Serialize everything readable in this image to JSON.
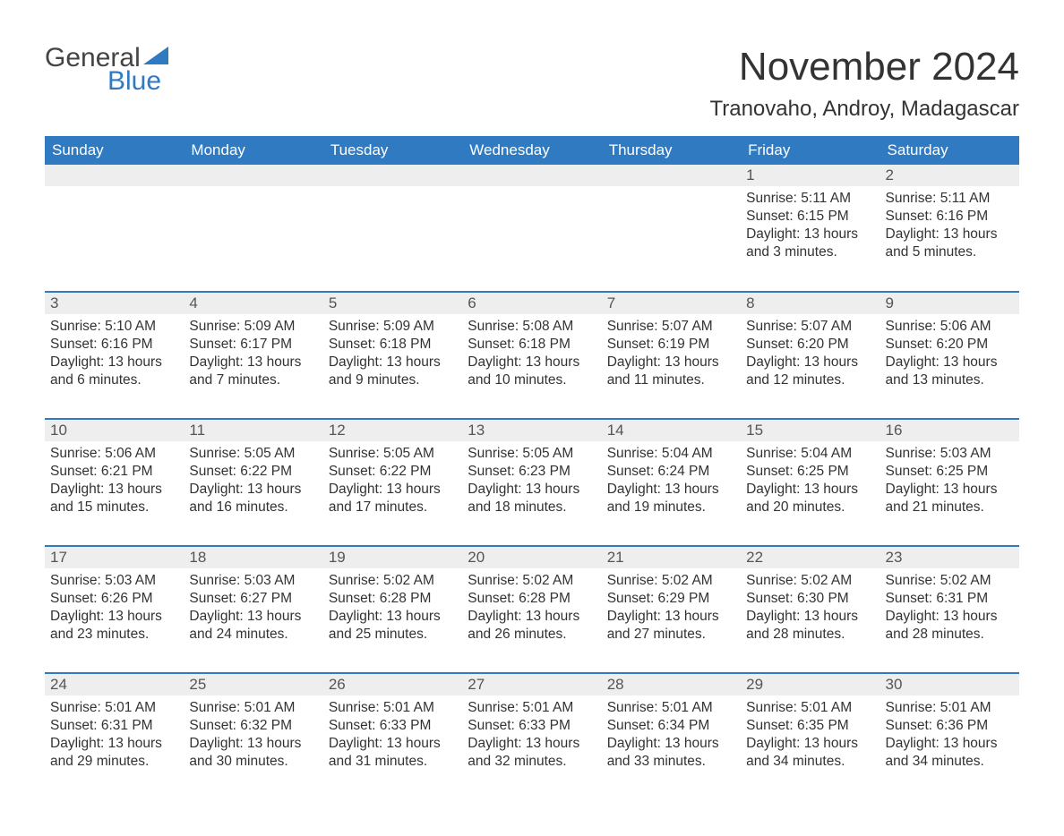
{
  "brand": {
    "word1": "General",
    "word2": "Blue",
    "sail_color": "#2f7ac0",
    "text_color_dark": "#444444",
    "text_color_accent": "#2f7ac0"
  },
  "title": "November 2024",
  "location": "Tranovaho, Androy, Madagascar",
  "colors": {
    "header_bg": "#2f7ac0",
    "header_text": "#ffffff",
    "row_divider": "#2f7ac0",
    "daynum_bg": "#eeeeee",
    "body_text": "#333333",
    "page_bg": "#ffffff"
  },
  "weekdays": [
    "Sunday",
    "Monday",
    "Tuesday",
    "Wednesday",
    "Thursday",
    "Friday",
    "Saturday"
  ],
  "weeks": [
    [
      {
        "empty": true
      },
      {
        "empty": true
      },
      {
        "empty": true
      },
      {
        "empty": true
      },
      {
        "empty": true
      },
      {
        "day": "1",
        "sunrise": "Sunrise: 5:11 AM",
        "sunset": "Sunset: 6:15 PM",
        "daylight": "Daylight: 13 hours and 3 minutes."
      },
      {
        "day": "2",
        "sunrise": "Sunrise: 5:11 AM",
        "sunset": "Sunset: 6:16 PM",
        "daylight": "Daylight: 13 hours and 5 minutes."
      }
    ],
    [
      {
        "day": "3",
        "sunrise": "Sunrise: 5:10 AM",
        "sunset": "Sunset: 6:16 PM",
        "daylight": "Daylight: 13 hours and 6 minutes."
      },
      {
        "day": "4",
        "sunrise": "Sunrise: 5:09 AM",
        "sunset": "Sunset: 6:17 PM",
        "daylight": "Daylight: 13 hours and 7 minutes."
      },
      {
        "day": "5",
        "sunrise": "Sunrise: 5:09 AM",
        "sunset": "Sunset: 6:18 PM",
        "daylight": "Daylight: 13 hours and 9 minutes."
      },
      {
        "day": "6",
        "sunrise": "Sunrise: 5:08 AM",
        "sunset": "Sunset: 6:18 PM",
        "daylight": "Daylight: 13 hours and 10 minutes."
      },
      {
        "day": "7",
        "sunrise": "Sunrise: 5:07 AM",
        "sunset": "Sunset: 6:19 PM",
        "daylight": "Daylight: 13 hours and 11 minutes."
      },
      {
        "day": "8",
        "sunrise": "Sunrise: 5:07 AM",
        "sunset": "Sunset: 6:20 PM",
        "daylight": "Daylight: 13 hours and 12 minutes."
      },
      {
        "day": "9",
        "sunrise": "Sunrise: 5:06 AM",
        "sunset": "Sunset: 6:20 PM",
        "daylight": "Daylight: 13 hours and 13 minutes."
      }
    ],
    [
      {
        "day": "10",
        "sunrise": "Sunrise: 5:06 AM",
        "sunset": "Sunset: 6:21 PM",
        "daylight": "Daylight: 13 hours and 15 minutes."
      },
      {
        "day": "11",
        "sunrise": "Sunrise: 5:05 AM",
        "sunset": "Sunset: 6:22 PM",
        "daylight": "Daylight: 13 hours and 16 minutes."
      },
      {
        "day": "12",
        "sunrise": "Sunrise: 5:05 AM",
        "sunset": "Sunset: 6:22 PM",
        "daylight": "Daylight: 13 hours and 17 minutes."
      },
      {
        "day": "13",
        "sunrise": "Sunrise: 5:05 AM",
        "sunset": "Sunset: 6:23 PM",
        "daylight": "Daylight: 13 hours and 18 minutes."
      },
      {
        "day": "14",
        "sunrise": "Sunrise: 5:04 AM",
        "sunset": "Sunset: 6:24 PM",
        "daylight": "Daylight: 13 hours and 19 minutes."
      },
      {
        "day": "15",
        "sunrise": "Sunrise: 5:04 AM",
        "sunset": "Sunset: 6:25 PM",
        "daylight": "Daylight: 13 hours and 20 minutes."
      },
      {
        "day": "16",
        "sunrise": "Sunrise: 5:03 AM",
        "sunset": "Sunset: 6:25 PM",
        "daylight": "Daylight: 13 hours and 21 minutes."
      }
    ],
    [
      {
        "day": "17",
        "sunrise": "Sunrise: 5:03 AM",
        "sunset": "Sunset: 6:26 PM",
        "daylight": "Daylight: 13 hours and 23 minutes."
      },
      {
        "day": "18",
        "sunrise": "Sunrise: 5:03 AM",
        "sunset": "Sunset: 6:27 PM",
        "daylight": "Daylight: 13 hours and 24 minutes."
      },
      {
        "day": "19",
        "sunrise": "Sunrise: 5:02 AM",
        "sunset": "Sunset: 6:28 PM",
        "daylight": "Daylight: 13 hours and 25 minutes."
      },
      {
        "day": "20",
        "sunrise": "Sunrise: 5:02 AM",
        "sunset": "Sunset: 6:28 PM",
        "daylight": "Daylight: 13 hours and 26 minutes."
      },
      {
        "day": "21",
        "sunrise": "Sunrise: 5:02 AM",
        "sunset": "Sunset: 6:29 PM",
        "daylight": "Daylight: 13 hours and 27 minutes."
      },
      {
        "day": "22",
        "sunrise": "Sunrise: 5:02 AM",
        "sunset": "Sunset: 6:30 PM",
        "daylight": "Daylight: 13 hours and 28 minutes."
      },
      {
        "day": "23",
        "sunrise": "Sunrise: 5:02 AM",
        "sunset": "Sunset: 6:31 PM",
        "daylight": "Daylight: 13 hours and 28 minutes."
      }
    ],
    [
      {
        "day": "24",
        "sunrise": "Sunrise: 5:01 AM",
        "sunset": "Sunset: 6:31 PM",
        "daylight": "Daylight: 13 hours and 29 minutes."
      },
      {
        "day": "25",
        "sunrise": "Sunrise: 5:01 AM",
        "sunset": "Sunset: 6:32 PM",
        "daylight": "Daylight: 13 hours and 30 minutes."
      },
      {
        "day": "26",
        "sunrise": "Sunrise: 5:01 AM",
        "sunset": "Sunset: 6:33 PM",
        "daylight": "Daylight: 13 hours and 31 minutes."
      },
      {
        "day": "27",
        "sunrise": "Sunrise: 5:01 AM",
        "sunset": "Sunset: 6:33 PM",
        "daylight": "Daylight: 13 hours and 32 minutes."
      },
      {
        "day": "28",
        "sunrise": "Sunrise: 5:01 AM",
        "sunset": "Sunset: 6:34 PM",
        "daylight": "Daylight: 13 hours and 33 minutes."
      },
      {
        "day": "29",
        "sunrise": "Sunrise: 5:01 AM",
        "sunset": "Sunset: 6:35 PM",
        "daylight": "Daylight: 13 hours and 34 minutes."
      },
      {
        "day": "30",
        "sunrise": "Sunrise: 5:01 AM",
        "sunset": "Sunset: 6:36 PM",
        "daylight": "Daylight: 13 hours and 34 minutes."
      }
    ]
  ]
}
